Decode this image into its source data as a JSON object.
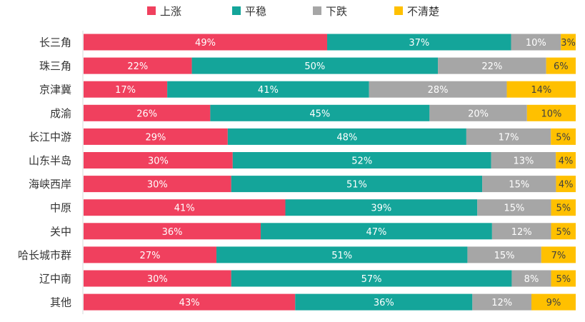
{
  "chart_data": {
    "type": "bar",
    "orientation": "horizontal",
    "stacked": true,
    "percent_stacked": true,
    "categories": [
      "长三角",
      "珠三角",
      "京津冀",
      "成渝",
      "长江中游",
      "山东半岛",
      "海峡西岸",
      "中原",
      "关中",
      "哈长城市群",
      "辽中南",
      "其他"
    ],
    "series": [
      {
        "name": "上涨",
        "color": "#F0405E",
        "values": [
          49,
          22,
          17,
          26,
          29,
          30,
          30,
          41,
          36,
          27,
          30,
          43
        ]
      },
      {
        "name": "平稳",
        "color": "#14A59A",
        "values": [
          37,
          50,
          41,
          45,
          48,
          52,
          51,
          39,
          47,
          51,
          57,
          36
        ]
      },
      {
        "name": "下跌",
        "color": "#A6A6A6",
        "values": [
          10,
          22,
          28,
          20,
          17,
          13,
          15,
          15,
          12,
          15,
          8,
          12
        ]
      },
      {
        "name": "不清楚",
        "color": "#FFC000",
        "values": [
          3,
          6,
          14,
          10,
          5,
          4,
          4,
          5,
          5,
          7,
          5,
          9
        ]
      }
    ],
    "value_suffix": "%",
    "legend": "top-center",
    "grid": false
  }
}
